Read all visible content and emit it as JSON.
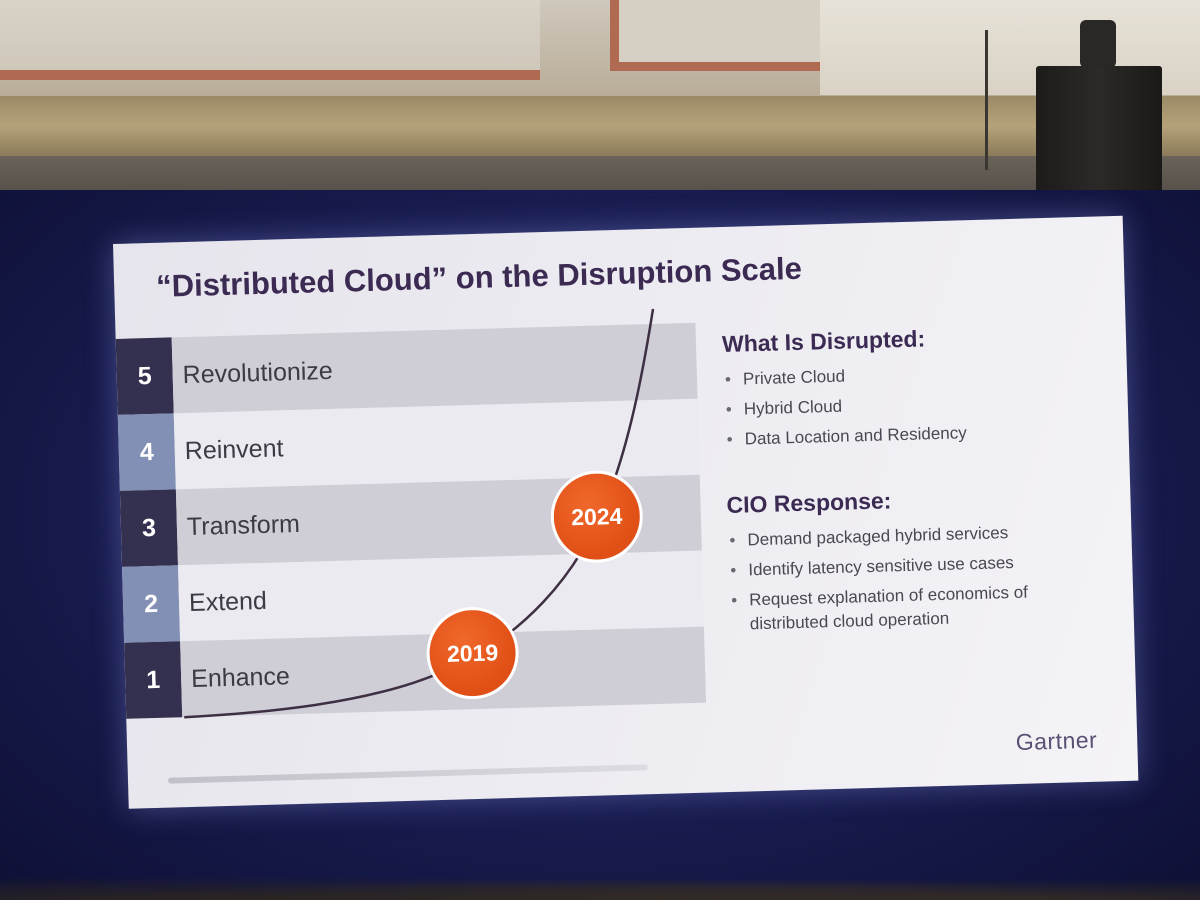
{
  "slide": {
    "title": "“Distributed Cloud” on the Disruption Scale",
    "scale_levels": [
      {
        "number": "5",
        "label": "Revolutionize"
      },
      {
        "number": "4",
        "label": "Reinvent"
      },
      {
        "number": "3",
        "label": "Transform"
      },
      {
        "number": "2",
        "label": "Extend"
      },
      {
        "number": "1",
        "label": "Enhance"
      }
    ],
    "markers": [
      {
        "label": "2019"
      },
      {
        "label": "2024"
      }
    ],
    "disrupted": {
      "heading": "What Is Disrupted:",
      "items": [
        "Private Cloud",
        "Hybrid Cloud",
        "Data Location and Residency"
      ]
    },
    "response": {
      "heading": "CIO Response:",
      "items": [
        "Demand packaged hybrid services",
        "Identify latency sensitive use cases",
        "Request explanation of economics of distributed cloud operation"
      ]
    },
    "logo": "Gartner",
    "colors": {
      "accent_orange": "#e2561b",
      "title_purple": "#3b2a52",
      "num_cell_dark": "#34304f",
      "num_cell_light": "#7f8db4"
    }
  }
}
